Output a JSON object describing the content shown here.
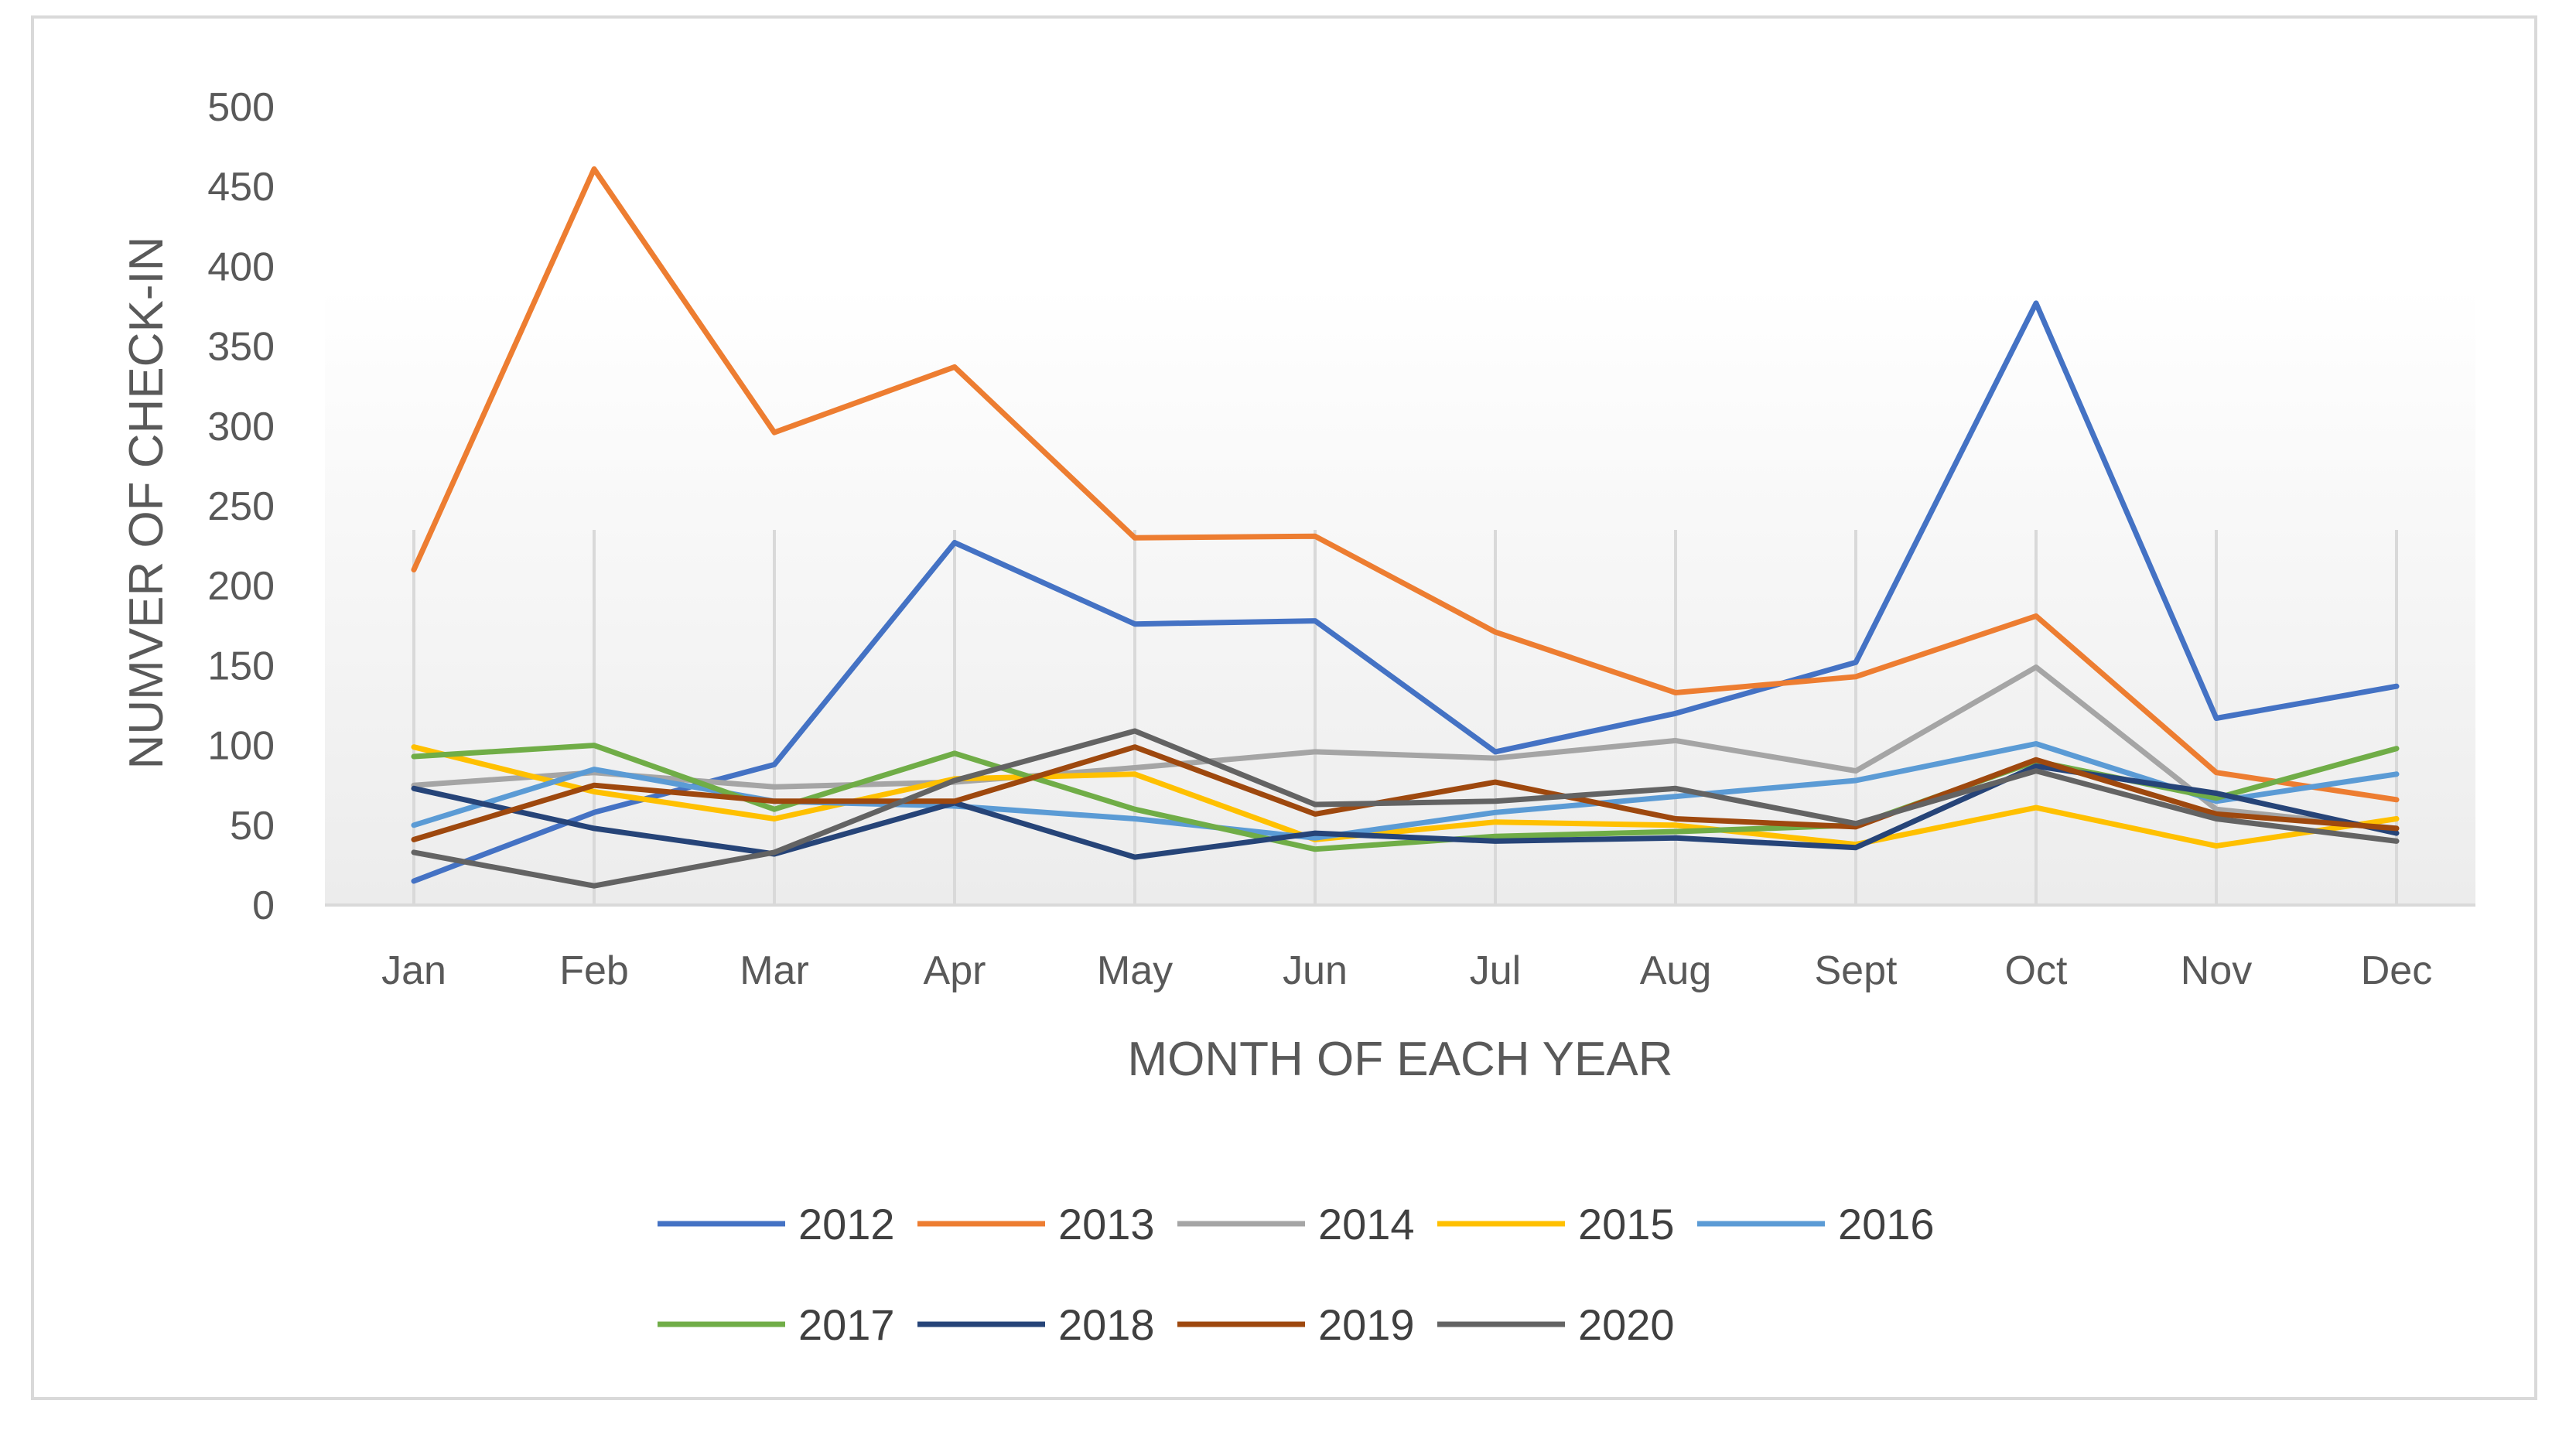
{
  "chart_data": {
    "type": "line",
    "title": "",
    "xlabel": "MONTH OF EACH YEAR",
    "ylabel": "NUMVER OF CHECK-IN",
    "ylim": [
      0,
      500
    ],
    "yticks": [
      0,
      50,
      100,
      150,
      200,
      250,
      300,
      350,
      400,
      450,
      500
    ],
    "grid": "vertical",
    "legend_position": "bottom",
    "categories": [
      "Jan",
      "Feb",
      "Mar",
      "Apr",
      "May",
      "Jun",
      "Jul",
      "Aug",
      "Sept",
      "Oct",
      "Nov",
      "Dec"
    ],
    "series": [
      {
        "name": "2012",
        "color": "#4472C4",
        "values": [
          15,
          58,
          88,
          227,
          176,
          178,
          96,
          120,
          152,
          377,
          117,
          137
        ]
      },
      {
        "name": "2013",
        "color": "#ED7D31",
        "values": [
          210,
          461,
          296,
          337,
          230,
          231,
          171,
          133,
          143,
          181,
          83,
          66
        ]
      },
      {
        "name": "2014",
        "color": "#A5A5A5",
        "values": [
          75,
          83,
          74,
          77,
          86,
          96,
          92,
          103,
          84,
          149,
          60,
          48
        ]
      },
      {
        "name": "2015",
        "color": "#FFC000",
        "values": [
          99,
          71,
          54,
          79,
          82,
          41,
          52,
          50,
          38,
          61,
          37,
          54
        ]
      },
      {
        "name": "2016",
        "color": "#5B9BD5",
        "values": [
          50,
          85,
          65,
          62,
          54,
          42,
          58,
          68,
          78,
          101,
          65,
          82
        ]
      },
      {
        "name": "2017",
        "color": "#70AD47",
        "values": [
          93,
          100,
          60,
          95,
          60,
          35,
          43,
          46,
          50,
          90,
          67,
          98
        ]
      },
      {
        "name": "2018",
        "color": "#264478",
        "values": [
          73,
          48,
          32,
          64,
          30,
          45,
          40,
          42,
          36,
          87,
          70,
          45
        ]
      },
      {
        "name": "2019",
        "color": "#9E480E",
        "values": [
          41,
          75,
          65,
          65,
          99,
          57,
          77,
          54,
          49,
          91,
          57,
          48
        ]
      },
      {
        "name": "2020",
        "color": "#636363",
        "values": [
          33,
          12,
          33,
          78,
          109,
          63,
          65,
          73,
          51,
          84,
          54,
          40
        ]
      }
    ]
  }
}
